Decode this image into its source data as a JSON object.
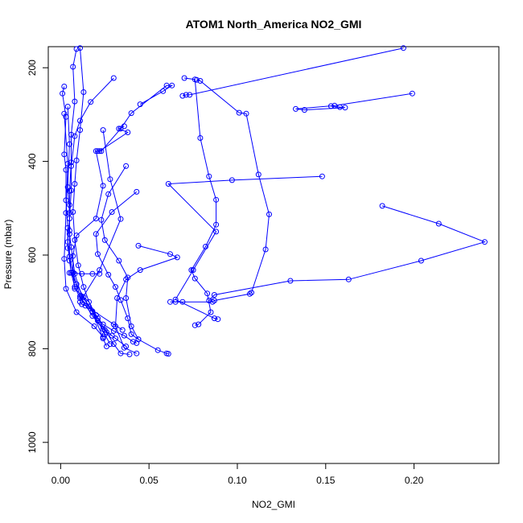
{
  "chart_data": {
    "type": "line",
    "title": "ATOM1 North_America NO2_GMI",
    "xlabel": "NO2_GMI",
    "ylabel": "Pressure (mbar)",
    "xlim": [
      -0.007,
      0.248
    ],
    "ylim": [
      1045,
      155
    ],
    "y_inverted": true,
    "x_ticks": [
      0.0,
      0.05,
      0.1,
      0.15,
      0.2
    ],
    "x_tick_labels": [
      "0.00",
      "0.05",
      "0.10",
      "0.15",
      "0.20"
    ],
    "y_ticks": [
      200,
      400,
      600,
      800,
      1000
    ],
    "y_tick_labels": [
      "200",
      "400",
      "600",
      "800",
      "1000"
    ],
    "grid": false,
    "legend": "none",
    "color": "#0000ff",
    "marker": "open-circle",
    "series": [
      {
        "values": [
          [
            0.194,
            158
          ],
          [
            0.073,
            258
          ],
          [
            0.071,
            258
          ],
          [
            0.069,
            260
          ]
        ]
      },
      {
        "values": [
          [
            0.07,
            222
          ],
          [
            0.076,
            225
          ],
          [
            0.079,
            350
          ],
          [
            0.084,
            432
          ],
          [
            0.088,
            482
          ],
          [
            0.088,
            535
          ],
          [
            0.082,
            582
          ],
          [
            0.074,
            632
          ],
          [
            0.076,
            650
          ],
          [
            0.083,
            682
          ],
          [
            0.085,
            722
          ],
          [
            0.078,
            748
          ],
          [
            0.076,
            750
          ]
        ]
      },
      {
        "values": [
          [
            0.03,
            222
          ],
          [
            0.017,
            273
          ],
          [
            0.011,
            313
          ],
          [
            0.008,
            346
          ],
          [
            0.006,
            410
          ],
          [
            0.006,
            462
          ],
          [
            0.005,
            522
          ],
          [
            0.004,
            572
          ],
          [
            0.005,
            612
          ],
          [
            0.006,
            638
          ],
          [
            0.009,
            662
          ],
          [
            0.013,
            690
          ],
          [
            0.018,
            722
          ],
          [
            0.024,
            748
          ],
          [
            0.03,
            762
          ],
          [
            0.036,
            772
          ],
          [
            0.041,
            785
          ],
          [
            0.043,
            788
          ]
        ]
      },
      {
        "values": [
          [
            0.077,
            226
          ],
          [
            0.079,
            228
          ],
          [
            0.101,
            296
          ],
          [
            0.105,
            298
          ],
          [
            0.112,
            428
          ],
          [
            0.118,
            513
          ],
          [
            0.116,
            588
          ],
          [
            0.108,
            680
          ],
          [
            0.107,
            683
          ],
          [
            0.087,
            697
          ],
          [
            0.086,
            700
          ],
          [
            0.069,
            700
          ],
          [
            0.065,
            700
          ],
          [
            0.062,
            700
          ]
        ]
      },
      {
        "values": [
          [
            0.199,
            255
          ],
          [
            0.155,
            281
          ],
          [
            0.133,
            288
          ],
          [
            0.138,
            290
          ],
          [
            0.161,
            285
          ],
          [
            0.158,
            284
          ],
          [
            0.153,
            282
          ]
        ]
      },
      {
        "values": [
          [
            0.148,
            432
          ],
          [
            0.097,
            440
          ],
          [
            0.061,
            448
          ],
          [
            0.088,
            550
          ],
          [
            0.075,
            632
          ],
          [
            0.065,
            695
          ],
          [
            0.087,
            735
          ],
          [
            0.089,
            737
          ]
        ]
      },
      {
        "values": [
          [
            0.182,
            495
          ],
          [
            0.214,
            533
          ],
          [
            0.24,
            572
          ],
          [
            0.204,
            612
          ],
          [
            0.163,
            652
          ],
          [
            0.13,
            655
          ],
          [
            0.087,
            685
          ],
          [
            0.084,
            697
          ]
        ]
      },
      {
        "values": [
          [
            0.045,
            278
          ],
          [
            0.058,
            250
          ],
          [
            0.063,
            238
          ],
          [
            0.06,
            238
          ],
          [
            0.04,
            297
          ],
          [
            0.034,
            330
          ],
          [
            0.023,
            378
          ],
          [
            0.021,
            378
          ]
        ]
      },
      {
        "values": [
          [
            0.024,
            333
          ],
          [
            0.028,
            438
          ],
          [
            0.034,
            523
          ],
          [
            0.022,
            632
          ],
          [
            0.011,
            700
          ],
          [
            0.012,
            705
          ],
          [
            0.014,
            708
          ],
          [
            0.03,
            748
          ],
          [
            0.035,
            760
          ]
        ]
      },
      {
        "values": [
          [
            0.036,
            325
          ],
          [
            0.033,
            330
          ],
          [
            0.038,
            338
          ],
          [
            0.022,
            378
          ],
          [
            0.02,
            378
          ],
          [
            0.024,
            452
          ],
          [
            0.02,
            522
          ],
          [
            0.009,
            558
          ],
          [
            0.007,
            602
          ],
          [
            0.007,
            638
          ],
          [
            0.011,
            688
          ],
          [
            0.018,
            730
          ],
          [
            0.024,
            758
          ],
          [
            0.031,
            778
          ],
          [
            0.037,
            795
          ]
        ]
      },
      {
        "values": [
          [
            0.044,
            580
          ],
          [
            0.062,
            598
          ],
          [
            0.066,
            605
          ],
          [
            0.045,
            632
          ],
          [
            0.037,
            652
          ],
          [
            0.032,
            692
          ],
          [
            0.031,
            752
          ],
          [
            0.036,
            798
          ],
          [
            0.043,
            810
          ]
        ]
      },
      {
        "values": [
          [
            0.037,
            410
          ],
          [
            0.027,
            470
          ],
          [
            0.023,
            525
          ],
          [
            0.025,
            568
          ],
          [
            0.033,
            612
          ],
          [
            0.038,
            648
          ],
          [
            0.037,
            692
          ],
          [
            0.04,
            752
          ],
          [
            0.044,
            780
          ],
          [
            0.055,
            803
          ],
          [
            0.06,
            810
          ],
          [
            0.061,
            811
          ]
        ]
      },
      {
        "values": [
          [
            0.043,
            465
          ],
          [
            0.029,
            508
          ],
          [
            0.02,
            555
          ],
          [
            0.021,
            598
          ],
          [
            0.027,
            642
          ],
          [
            0.031,
            668
          ],
          [
            0.034,
            696
          ],
          [
            0.038,
            735
          ],
          [
            0.04,
            769
          ],
          [
            0.044,
            780
          ]
        ]
      },
      {
        "values": [
          [
            0.002,
            240
          ],
          [
            0.001,
            255
          ],
          [
            0.003,
            305
          ],
          [
            0.002,
            385
          ],
          [
            0.003,
            418
          ],
          [
            0.003,
            483
          ],
          [
            0.004,
            542
          ],
          [
            0.004,
            585
          ],
          [
            0.007,
            637
          ],
          [
            0.008,
            672
          ],
          [
            0.016,
            700
          ],
          [
            0.021,
            735
          ],
          [
            0.026,
            765
          ],
          [
            0.03,
            790
          ],
          [
            0.034,
            810
          ],
          [
            0.039,
            812
          ]
        ]
      },
      {
        "values": [
          [
            0.009,
            160
          ],
          [
            0.007,
            198
          ],
          [
            0.008,
            272
          ],
          [
            0.006,
            343
          ],
          [
            0.006,
            402
          ],
          [
            0.005,
            463
          ],
          [
            0.005,
            493
          ],
          [
            0.005,
            548
          ],
          [
            0.005,
            603
          ],
          [
            0.006,
            638
          ],
          [
            0.008,
            668
          ],
          [
            0.011,
            692
          ],
          [
            0.016,
            710
          ],
          [
            0.021,
            740
          ],
          [
            0.025,
            770
          ],
          [
            0.028,
            790
          ]
        ]
      },
      {
        "values": [
          [
            0.011,
            158
          ],
          [
            0.013,
            252
          ],
          [
            0.011,
            333
          ],
          [
            0.009,
            398
          ],
          [
            0.008,
            448
          ],
          [
            0.007,
            508
          ],
          [
            0.008,
            568
          ],
          [
            0.01,
            622
          ],
          [
            0.013,
            668
          ],
          [
            0.018,
            720
          ],
          [
            0.024,
            778
          ],
          [
            0.026,
            795
          ]
        ]
      },
      {
        "values": [
          [
            0.002,
            298
          ],
          [
            0.004,
            405
          ],
          [
            0.003,
            510
          ],
          [
            0.002,
            608
          ],
          [
            0.003,
            672
          ],
          [
            0.009,
            722
          ],
          [
            0.019,
            752
          ],
          [
            0.024,
            775
          ]
        ]
      },
      {
        "values": [
          [
            0.004,
            283
          ],
          [
            0.005,
            363
          ],
          [
            0.004,
            455
          ],
          [
            0.005,
            510
          ],
          [
            0.005,
            555
          ],
          [
            0.006,
            583
          ],
          [
            0.008,
            640
          ],
          [
            0.012,
            688
          ],
          [
            0.02,
            728
          ],
          [
            0.025,
            760
          ],
          [
            0.029,
            772
          ]
        ]
      },
      {
        "values": [
          [
            0.005,
            638
          ],
          [
            0.012,
            640
          ],
          [
            0.018,
            640
          ],
          [
            0.022,
            640
          ]
        ]
      }
    ]
  }
}
